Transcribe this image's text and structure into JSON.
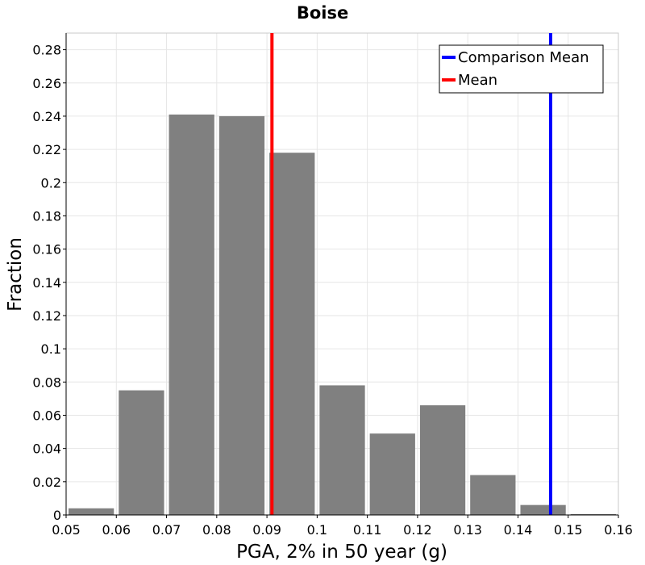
{
  "chart_data": {
    "type": "bar",
    "title": "Boise",
    "xlabel": "PGA, 2% in 50 year (g)",
    "ylabel": "Fraction",
    "xlim": [
      0.05,
      0.16
    ],
    "ylim": [
      0,
      0.29
    ],
    "xticks": [
      0.05,
      0.06,
      0.07,
      0.08,
      0.09,
      0.1,
      0.11,
      0.12,
      0.13,
      0.14,
      0.15,
      0.16
    ],
    "xtick_labels": [
      "0.05",
      "0.06",
      "0.07",
      "0.08",
      "0.09",
      "0.1",
      "0.11",
      "0.12",
      "0.13",
      "0.14",
      "0.15",
      "0.16"
    ],
    "yticks": [
      0,
      0.02,
      0.04,
      0.06,
      0.08,
      0.1,
      0.12,
      0.14,
      0.16,
      0.18,
      0.2,
      0.22,
      0.24,
      0.26,
      0.28
    ],
    "ytick_labels": [
      "0",
      "0.02",
      "0.04",
      "0.06",
      "0.08",
      "0.1",
      "0.12",
      "0.14",
      "0.16",
      "0.18",
      "0.2",
      "0.22",
      "0.24",
      "0.26",
      "0.28"
    ],
    "bin_width": 0.01,
    "bins": [
      {
        "x": 0.05,
        "value": 0.004
      },
      {
        "x": 0.06,
        "value": 0.075
      },
      {
        "x": 0.07,
        "value": 0.241
      },
      {
        "x": 0.08,
        "value": 0.24
      },
      {
        "x": 0.09,
        "value": 0.218
      },
      {
        "x": 0.1,
        "value": 0.078
      },
      {
        "x": 0.11,
        "value": 0.049
      },
      {
        "x": 0.12,
        "value": 0.066
      },
      {
        "x": 0.13,
        "value": 0.024
      },
      {
        "x": 0.14,
        "value": 0.006
      },
      {
        "x": 0.15,
        "value": 0.0005
      }
    ],
    "bar_color": "#808080",
    "grid": true,
    "vertical_lines": [
      {
        "name": "Mean",
        "x": 0.091,
        "color": "#ff0000"
      },
      {
        "name": "Comparison Mean",
        "x": 0.1465,
        "color": "#0000ff"
      }
    ],
    "legend": {
      "position": "top-right",
      "entries": [
        {
          "label": "Comparison Mean",
          "color": "#0000ff"
        },
        {
          "label": "Mean",
          "color": "#ff0000"
        }
      ]
    }
  }
}
